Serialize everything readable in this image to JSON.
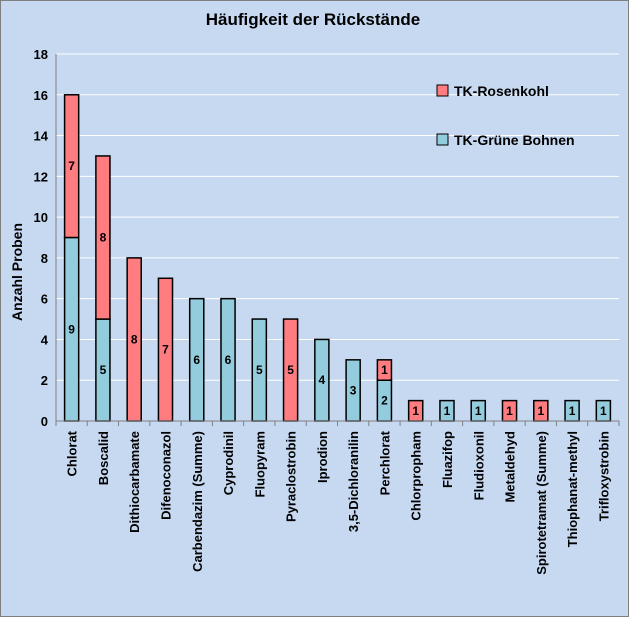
{
  "chart_data": {
    "type": "bar",
    "stacked": true,
    "title": "Häufigkeit der Rückstände",
    "ylabel": "Anzahl Proben",
    "xlabel": "",
    "ylim": [
      0,
      18
    ],
    "yticks": [
      0,
      2,
      4,
      6,
      8,
      10,
      12,
      14,
      16,
      18
    ],
    "grid": true,
    "legend_position": "top-right",
    "categories": [
      "Chlorat",
      "Boscalid",
      "Dithiocarbamate",
      "Difenoconazol",
      "Carbendazim (Summe)",
      "Cyprodinil",
      "Fluopyram",
      "Pyraclostrobin",
      "Iprodion",
      "3,5-Dichloranilin",
      "Perchlorat",
      "Chlorpropham",
      "Fluazifop",
      "Fludioxonil",
      "Metaldehyd",
      "Spirotetramat (Summe)",
      "Thiophanat-methyl",
      "Trifloxystrobin"
    ],
    "series": [
      {
        "name": "TK-Grüne Bohnen",
        "color": "#93cddd",
        "values": [
          9,
          5,
          0,
          0,
          6,
          6,
          5,
          0,
          4,
          3,
          2,
          0,
          1,
          1,
          0,
          0,
          1,
          1
        ]
      },
      {
        "name": "TK-Rosenkohl",
        "color": "#ff7c80",
        "values": [
          7,
          8,
          8,
          7,
          0,
          0,
          0,
          5,
          0,
          0,
          1,
          1,
          0,
          0,
          1,
          1,
          0,
          0
        ]
      }
    ],
    "legend_order": [
      "TK-Rosenkohl",
      "TK-Grüne Bohnen"
    ]
  }
}
